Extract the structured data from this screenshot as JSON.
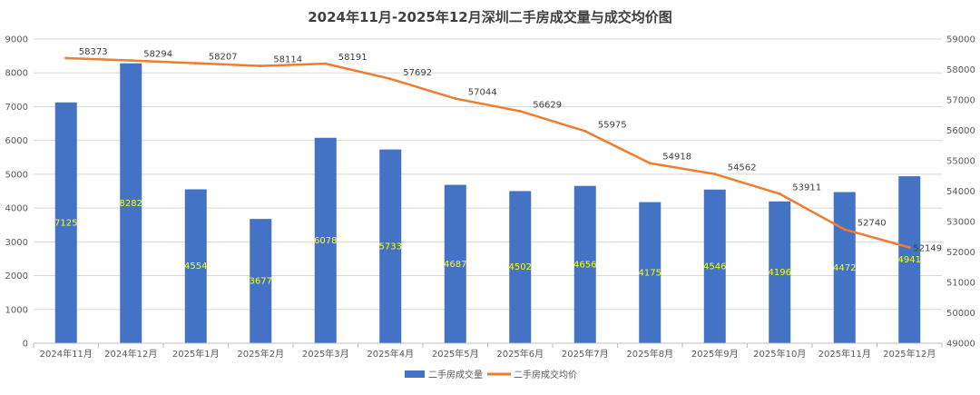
{
  "chart_data": {
    "type": "bar",
    "title": "2024年11月-2025年12月深圳二手房成交量与成交均价图",
    "categories": [
      "2024年11月",
      "2024年12月",
      "2025年1月",
      "2025年2月",
      "2025年3月",
      "2025年4月",
      "2025年5月",
      "2025年6月",
      "2025年7月",
      "2025年8月",
      "2025年9月",
      "2025年10月",
      "2025年11月",
      "2025年12月"
    ],
    "series": [
      {
        "name": "二手房成交量",
        "type": "bar",
        "axis": "left",
        "color": "#4472c4",
        "values": [
          7125,
          8282,
          4554,
          3677,
          6078,
          5733,
          4687,
          4502,
          4656,
          4175,
          4546,
          4196,
          4472,
          4941
        ]
      },
      {
        "name": "二手房成交均价",
        "type": "line",
        "axis": "right",
        "color": "#ed7d31",
        "values": [
          58373,
          58294,
          58207,
          58114,
          58191,
          57692,
          57044,
          56629,
          55975,
          54918,
          54562,
          53911,
          52740,
          52149
        ]
      }
    ],
    "y_left": {
      "min": 0,
      "max": 9000,
      "step": 1000,
      "ticks": [
        "0",
        "1000",
        "2000",
        "3000",
        "4000",
        "5000",
        "6000",
        "7000",
        "8000",
        "9000"
      ]
    },
    "y_right": {
      "min": 49000,
      "max": 59000,
      "step": 1000,
      "ticks": [
        "49000",
        "50000",
        "51000",
        "52000",
        "53000",
        "54000",
        "55000",
        "56000",
        "57000",
        "58000",
        "59000"
      ]
    },
    "grid": true,
    "legend_position": "bottom"
  }
}
